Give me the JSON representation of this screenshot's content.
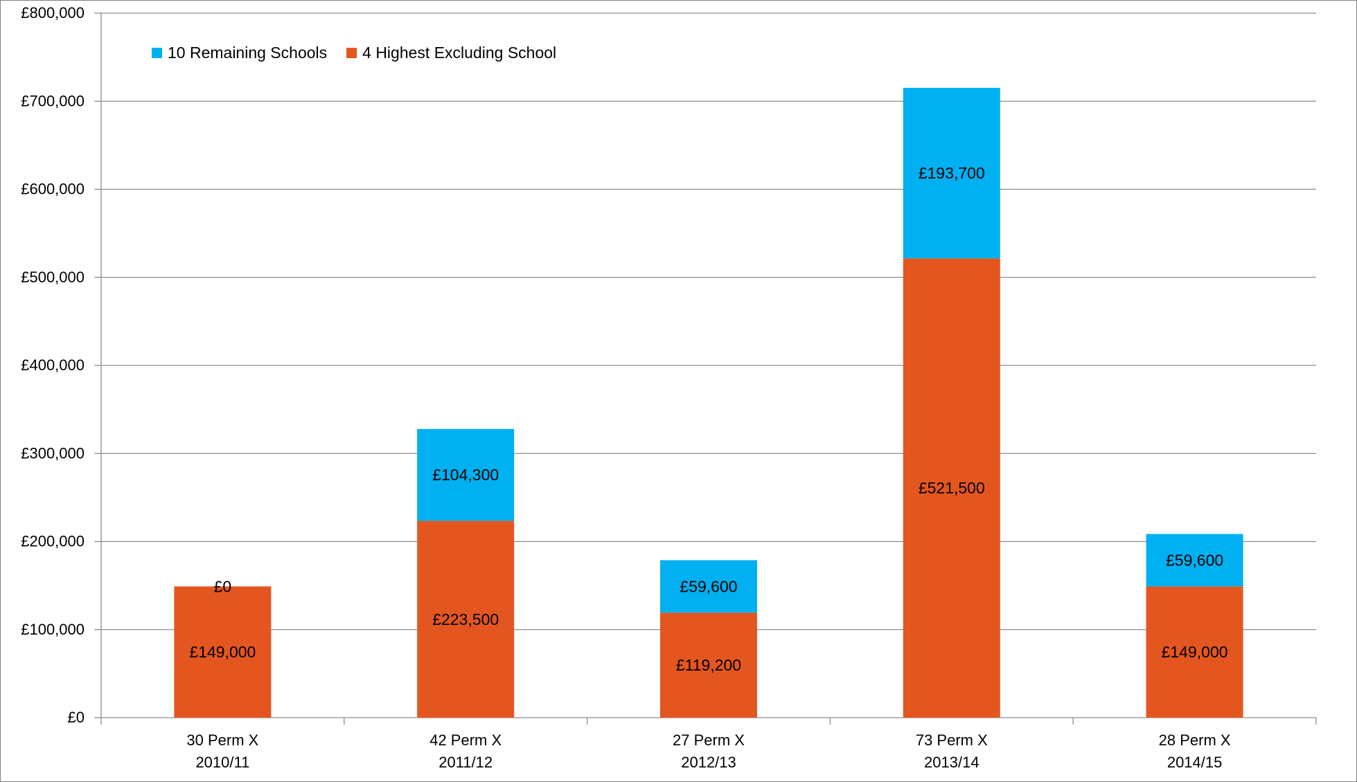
{
  "chart_data": {
    "type": "bar",
    "stacked": true,
    "title": "",
    "xlabel": "",
    "ylabel": "",
    "categories": [
      [
        "30 Perm X",
        "2010/11"
      ],
      [
        "42 Perm X",
        "2011/12"
      ],
      [
        "27 Perm X",
        "2012/13"
      ],
      [
        "73 Perm X",
        "2013/14"
      ],
      [
        "28 Perm X",
        "2014/15"
      ]
    ],
    "series": [
      {
        "name": "4 Highest Excluding School",
        "color": "#e4561f",
        "values": [
          149000,
          223500,
          119200,
          521500,
          149000
        ],
        "labels": [
          "£149,000",
          "£223,500",
          "£119,200",
          "£521,500",
          "£149,000"
        ]
      },
      {
        "name": "10 Remaining Schools",
        "color": "#00b0f0",
        "values": [
          0,
          104300,
          59600,
          193700,
          59600
        ],
        "labels": [
          "£0",
          "£104,300",
          "£59,600",
          "£193,700",
          "£59,600"
        ]
      }
    ],
    "ylim": [
      0,
      800000
    ],
    "yticks": [
      0,
      100000,
      200000,
      300000,
      400000,
      500000,
      600000,
      700000,
      800000
    ],
    "ytick_labels": [
      "£0",
      "£100,000",
      "£200,000",
      "£300,000",
      "£400,000",
      "£500,000",
      "£600,000",
      "£700,000",
      "£800,000"
    ],
    "grid": true,
    "legend": {
      "position": "top-left",
      "order": [
        "10 Remaining Schools",
        "4 Highest Excluding School"
      ]
    }
  }
}
